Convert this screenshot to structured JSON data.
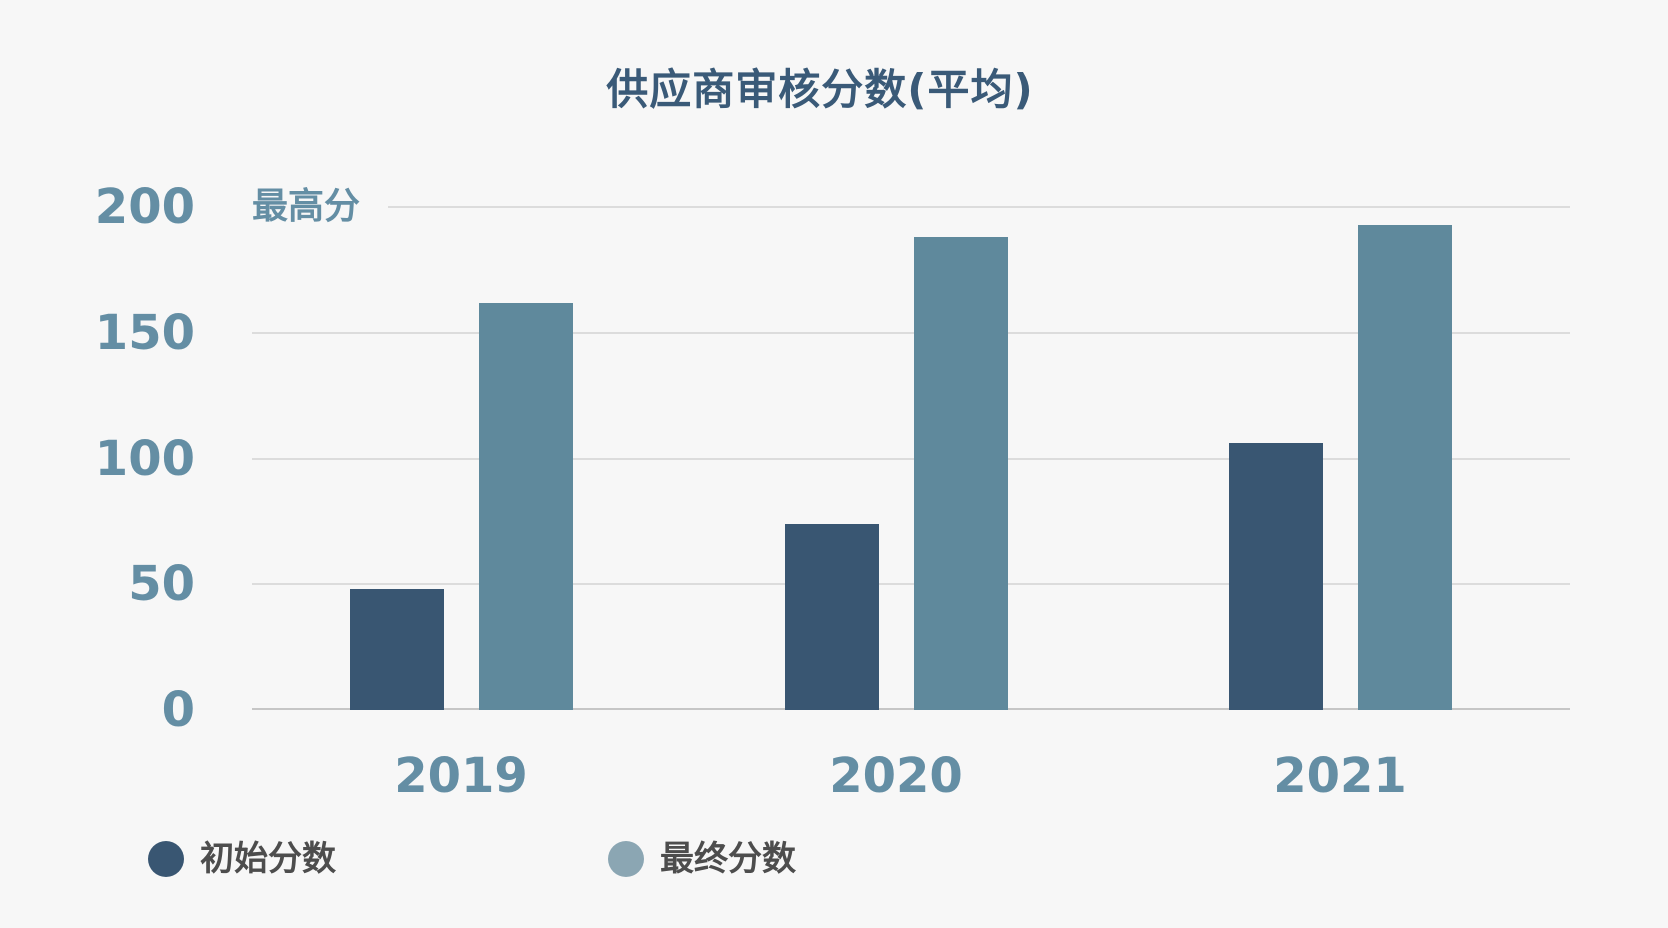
{
  "title": "供应商审核分数(平均)",
  "y_axis_note": "最高分",
  "colors": {
    "background": "#f7f7f7",
    "title": "#3a5a78",
    "axis_label": "#648ea4",
    "grid": "#dcdcdc",
    "axis_line": "#c6c6c6",
    "legend_text": "#4d4d4d"
  },
  "chart_data": {
    "type": "bar",
    "title": "供应商审核分数(平均)",
    "categories": [
      "2019",
      "2020",
      "2021"
    ],
    "series": [
      {
        "key": "initial",
        "name": "初始分数",
        "color": "#395672",
        "values": [
          48,
          74,
          106
        ]
      },
      {
        "key": "final",
        "name": "最终分数",
        "color": "#5f899c",
        "values": [
          162,
          188,
          193
        ]
      }
    ],
    "ylim": [
      0,
      200
    ],
    "yticks": [
      0,
      50,
      100,
      150,
      200
    ],
    "annotations": [
      "最高分"
    ],
    "grid": true,
    "legend_position": "bottom-left"
  },
  "legend": {
    "items": [
      {
        "label": "初始分数",
        "dot_color": "#395672"
      },
      {
        "label": "最终分数",
        "dot_color": "#8ba6b3"
      }
    ]
  }
}
